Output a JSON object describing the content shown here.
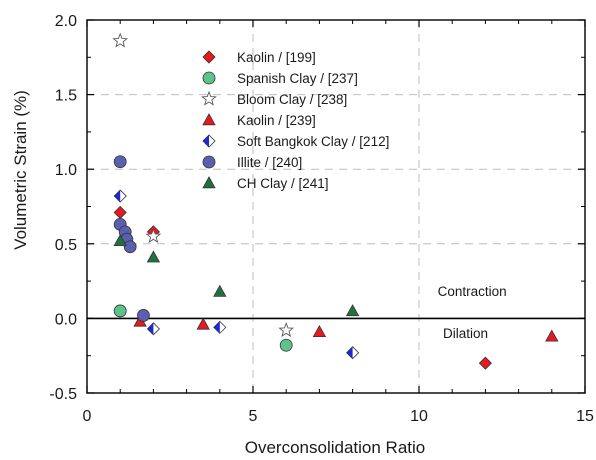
{
  "chart_data": {
    "type": "scatter",
    "xlabel": "Overconsolidation Ratio",
    "ylabel": "Volumetric Strain (%)",
    "xlim": [
      0,
      15
    ],
    "ylim": [
      -0.5,
      2.0
    ],
    "xticks": [
      "0",
      "5",
      "10",
      "15"
    ],
    "yticks": [
      "-0.5",
      "0.0",
      "0.5",
      "1.0",
      "1.5",
      "2.0"
    ],
    "grid": "dashed at x=5, x=10 and y=0.5, y=1.0, y=1.5",
    "zero_line": true,
    "legend_position": "top-center",
    "annotations": [
      {
        "text": "Contraction",
        "x": 11.6,
        "y": 0.15
      },
      {
        "text": "Dilation",
        "x": 11.4,
        "y": -0.13
      }
    ],
    "series": [
      {
        "name": "Kaolin / [199]",
        "marker": "diamond",
        "color": "#e8191e",
        "points": [
          [
            1.0,
            0.71
          ],
          [
            2.0,
            0.58
          ],
          [
            12.0,
            -0.3
          ]
        ]
      },
      {
        "name": "Spanish Clay / [237]",
        "marker": "circle",
        "color": "#5cc48a",
        "points": [
          [
            1.0,
            0.05
          ],
          [
            6.0,
            -0.18
          ]
        ]
      },
      {
        "name": "Bloom Clay / [238]",
        "marker": "star",
        "color": "#ffffff",
        "points": [
          [
            1.0,
            1.86
          ],
          [
            2.0,
            0.55
          ],
          [
            6.0,
            -0.08
          ]
        ]
      },
      {
        "name": "Kaolin / [239]",
        "marker": "triangle",
        "color": "#e8191e",
        "points": [
          [
            1.6,
            -0.02
          ],
          [
            3.5,
            -0.04
          ],
          [
            7.0,
            -0.09
          ],
          [
            14.0,
            -0.12
          ]
        ]
      },
      {
        "name": "Soft Bangkok Clay / [212]",
        "marker": "half-diamond",
        "color": "#1a26e0",
        "points": [
          [
            1.0,
            0.82
          ],
          [
            2.0,
            -0.07
          ],
          [
            4.0,
            -0.06
          ],
          [
            8.0,
            -0.23
          ]
        ]
      },
      {
        "name": "Illite / [240]",
        "marker": "circle",
        "color": "#5b5fb0",
        "points": [
          [
            1.0,
            1.05
          ],
          [
            1.0,
            0.63
          ],
          [
            1.15,
            0.58
          ],
          [
            1.2,
            0.53
          ],
          [
            1.3,
            0.48
          ],
          [
            1.7,
            0.02
          ]
        ]
      },
      {
        "name": "CH Clay / [241]",
        "marker": "triangle",
        "color": "#207040",
        "points": [
          [
            1.0,
            0.52
          ],
          [
            2.0,
            0.41
          ],
          [
            4.0,
            0.18
          ],
          [
            8.0,
            0.05
          ]
        ]
      }
    ]
  }
}
